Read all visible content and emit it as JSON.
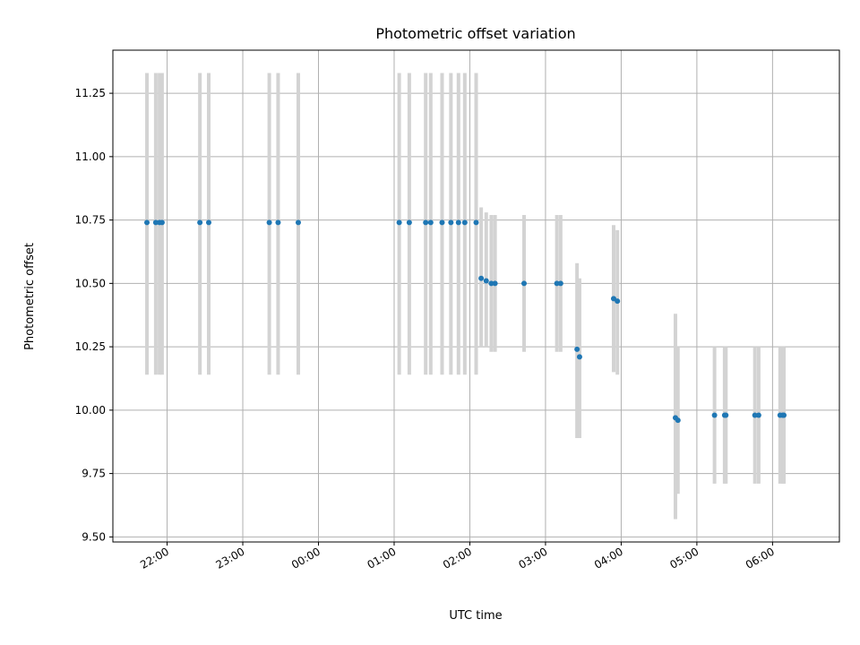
{
  "chart_data": {
    "type": "scatter",
    "title": "Photometric offset variation",
    "xlabel": "UTC time",
    "ylabel": "Photometric offset",
    "ylim": [
      9.48,
      11.42
    ],
    "xlim": [
      "21:17",
      "06:53"
    ],
    "grid": true,
    "colors": {
      "points": "#1f77b4",
      "errorbars": "#d3d3d3",
      "grid": "#b0b0b0"
    },
    "x_ticks": [
      "22:00",
      "23:00",
      "00:00",
      "01:00",
      "02:00",
      "03:00",
      "04:00",
      "05:00",
      "06:00"
    ],
    "y_ticks": [
      "9.50",
      "9.75",
      "10.00",
      "10.25",
      "10.50",
      "10.75",
      "11.00",
      "11.25"
    ],
    "points": [
      {
        "t": "21:44",
        "y": 10.74,
        "lo": 10.14,
        "hi": 11.33
      },
      {
        "t": "21:51",
        "y": 10.74,
        "lo": 10.14,
        "hi": 11.33
      },
      {
        "t": "21:54",
        "y": 10.74,
        "lo": 10.14,
        "hi": 11.33
      },
      {
        "t": "21:56",
        "y": 10.74,
        "lo": 10.14,
        "hi": 11.33
      },
      {
        "t": "22:26",
        "y": 10.74,
        "lo": 10.14,
        "hi": 11.33
      },
      {
        "t": "22:33",
        "y": 10.74,
        "lo": 10.14,
        "hi": 11.33
      },
      {
        "t": "23:21",
        "y": 10.74,
        "lo": 10.14,
        "hi": 11.33
      },
      {
        "t": "23:28",
        "y": 10.74,
        "lo": 10.14,
        "hi": 11.33
      },
      {
        "t": "23:44",
        "y": 10.74,
        "lo": 10.14,
        "hi": 11.33
      },
      {
        "t": "01:04",
        "y": 10.74,
        "lo": 10.14,
        "hi": 11.33
      },
      {
        "t": "01:12",
        "y": 10.74,
        "lo": 10.14,
        "hi": 11.33
      },
      {
        "t": "01:25",
        "y": 10.74,
        "lo": 10.14,
        "hi": 11.33
      },
      {
        "t": "01:29",
        "y": 10.74,
        "lo": 10.14,
        "hi": 11.33
      },
      {
        "t": "01:38",
        "y": 10.74,
        "lo": 10.14,
        "hi": 11.33
      },
      {
        "t": "01:45",
        "y": 10.74,
        "lo": 10.14,
        "hi": 11.33
      },
      {
        "t": "01:51",
        "y": 10.74,
        "lo": 10.14,
        "hi": 11.33
      },
      {
        "t": "01:56",
        "y": 10.74,
        "lo": 10.14,
        "hi": 11.33
      },
      {
        "t": "02:05",
        "y": 10.74,
        "lo": 10.14,
        "hi": 11.33
      },
      {
        "t": "02:09",
        "y": 10.52,
        "lo": 10.25,
        "hi": 10.8
      },
      {
        "t": "02:13",
        "y": 10.51,
        "lo": 10.25,
        "hi": 10.78
      },
      {
        "t": "02:17",
        "y": 10.5,
        "lo": 10.23,
        "hi": 10.77
      },
      {
        "t": "02:20",
        "y": 10.5,
        "lo": 10.23,
        "hi": 10.77
      },
      {
        "t": "02:43",
        "y": 10.5,
        "lo": 10.23,
        "hi": 10.77
      },
      {
        "t": "03:09",
        "y": 10.5,
        "lo": 10.23,
        "hi": 10.77
      },
      {
        "t": "03:12",
        "y": 10.5,
        "lo": 10.23,
        "hi": 10.77
      },
      {
        "t": "03:25",
        "y": 10.24,
        "lo": 9.89,
        "hi": 10.58
      },
      {
        "t": "03:27",
        "y": 10.21,
        "lo": 9.89,
        "hi": 10.52
      },
      {
        "t": "03:54",
        "y": 10.44,
        "lo": 10.15,
        "hi": 10.73
      },
      {
        "t": "03:57",
        "y": 10.43,
        "lo": 10.14,
        "hi": 10.71
      },
      {
        "t": "04:43",
        "y": 9.97,
        "lo": 9.57,
        "hi": 10.38
      },
      {
        "t": "04:45",
        "y": 9.96,
        "lo": 9.67,
        "hi": 10.25
      },
      {
        "t": "05:14",
        "y": 9.98,
        "lo": 9.71,
        "hi": 10.25
      },
      {
        "t": "05:22",
        "y": 9.98,
        "lo": 9.71,
        "hi": 10.25
      },
      {
        "t": "05:23",
        "y": 9.98,
        "lo": 9.71,
        "hi": 10.25
      },
      {
        "t": "05:46",
        "y": 9.98,
        "lo": 9.71,
        "hi": 10.25
      },
      {
        "t": "05:49",
        "y": 9.98,
        "lo": 9.71,
        "hi": 10.25
      },
      {
        "t": "06:06",
        "y": 9.98,
        "lo": 9.71,
        "hi": 10.25
      },
      {
        "t": "06:08",
        "y": 9.98,
        "lo": 9.71,
        "hi": 10.25
      },
      {
        "t": "06:09",
        "y": 9.98,
        "lo": 9.71,
        "hi": 10.25
      }
    ]
  }
}
